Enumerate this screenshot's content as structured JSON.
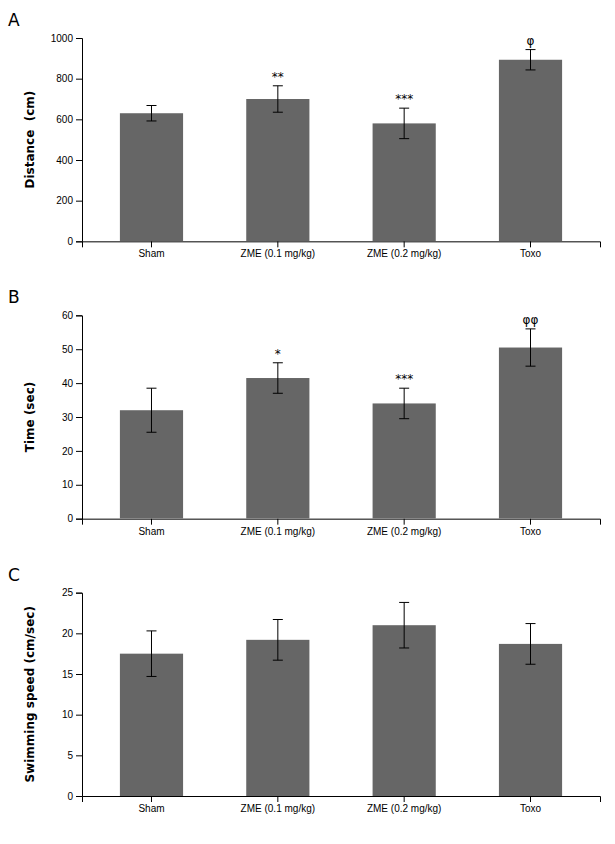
{
  "chart_data": [
    {
      "type": "bar",
      "title": "A",
      "categories": [
        "Sham",
        "ZME (0.1 mg/kg)",
        "ZME (0.2 mg/kg)",
        "Toxo"
      ],
      "values": [
        630,
        700,
        580,
        893
      ],
      "errors": [
        38,
        65,
        75,
        50
      ],
      "annotations": [
        null,
        "**",
        "***",
        "φ"
      ],
      "ylabel": "Distance  (cm)",
      "ylim": [
        0,
        1000
      ],
      "yticks": [
        0,
        200,
        400,
        600,
        800,
        1000
      ],
      "color": "#666666"
    },
    {
      "type": "bar",
      "title": "B",
      "categories": [
        "Sham",
        "ZME (0.1 mg/kg)",
        "ZME (0.2 mg/kg)",
        "Toxo"
      ],
      "values": [
        32,
        41.5,
        34,
        50.5
      ],
      "errors": [
        6.5,
        4.5,
        4.5,
        5.5
      ],
      "annotations": [
        null,
        "*",
        "***",
        "φφ"
      ],
      "ylabel": "Time (sec)",
      "ylim": [
        0,
        60
      ],
      "yticks": [
        0,
        10,
        20,
        30,
        40,
        50,
        60
      ],
      "color": "#666666"
    },
    {
      "type": "bar",
      "title": "C",
      "categories": [
        "Sham",
        "ZME (0.1 mg/kg)",
        "ZME (0.2 mg/kg)",
        "Toxo"
      ],
      "values": [
        17.5,
        19.2,
        21.0,
        18.7
      ],
      "errors": [
        2.8,
        2.5,
        2.8,
        2.5
      ],
      "ylabel": "Swimming speed (cm/sec)",
      "ylim": [
        0,
        25
      ],
      "yticks": [
        0,
        5,
        10,
        15,
        20,
        25
      ],
      "color": "#666666"
    }
  ]
}
